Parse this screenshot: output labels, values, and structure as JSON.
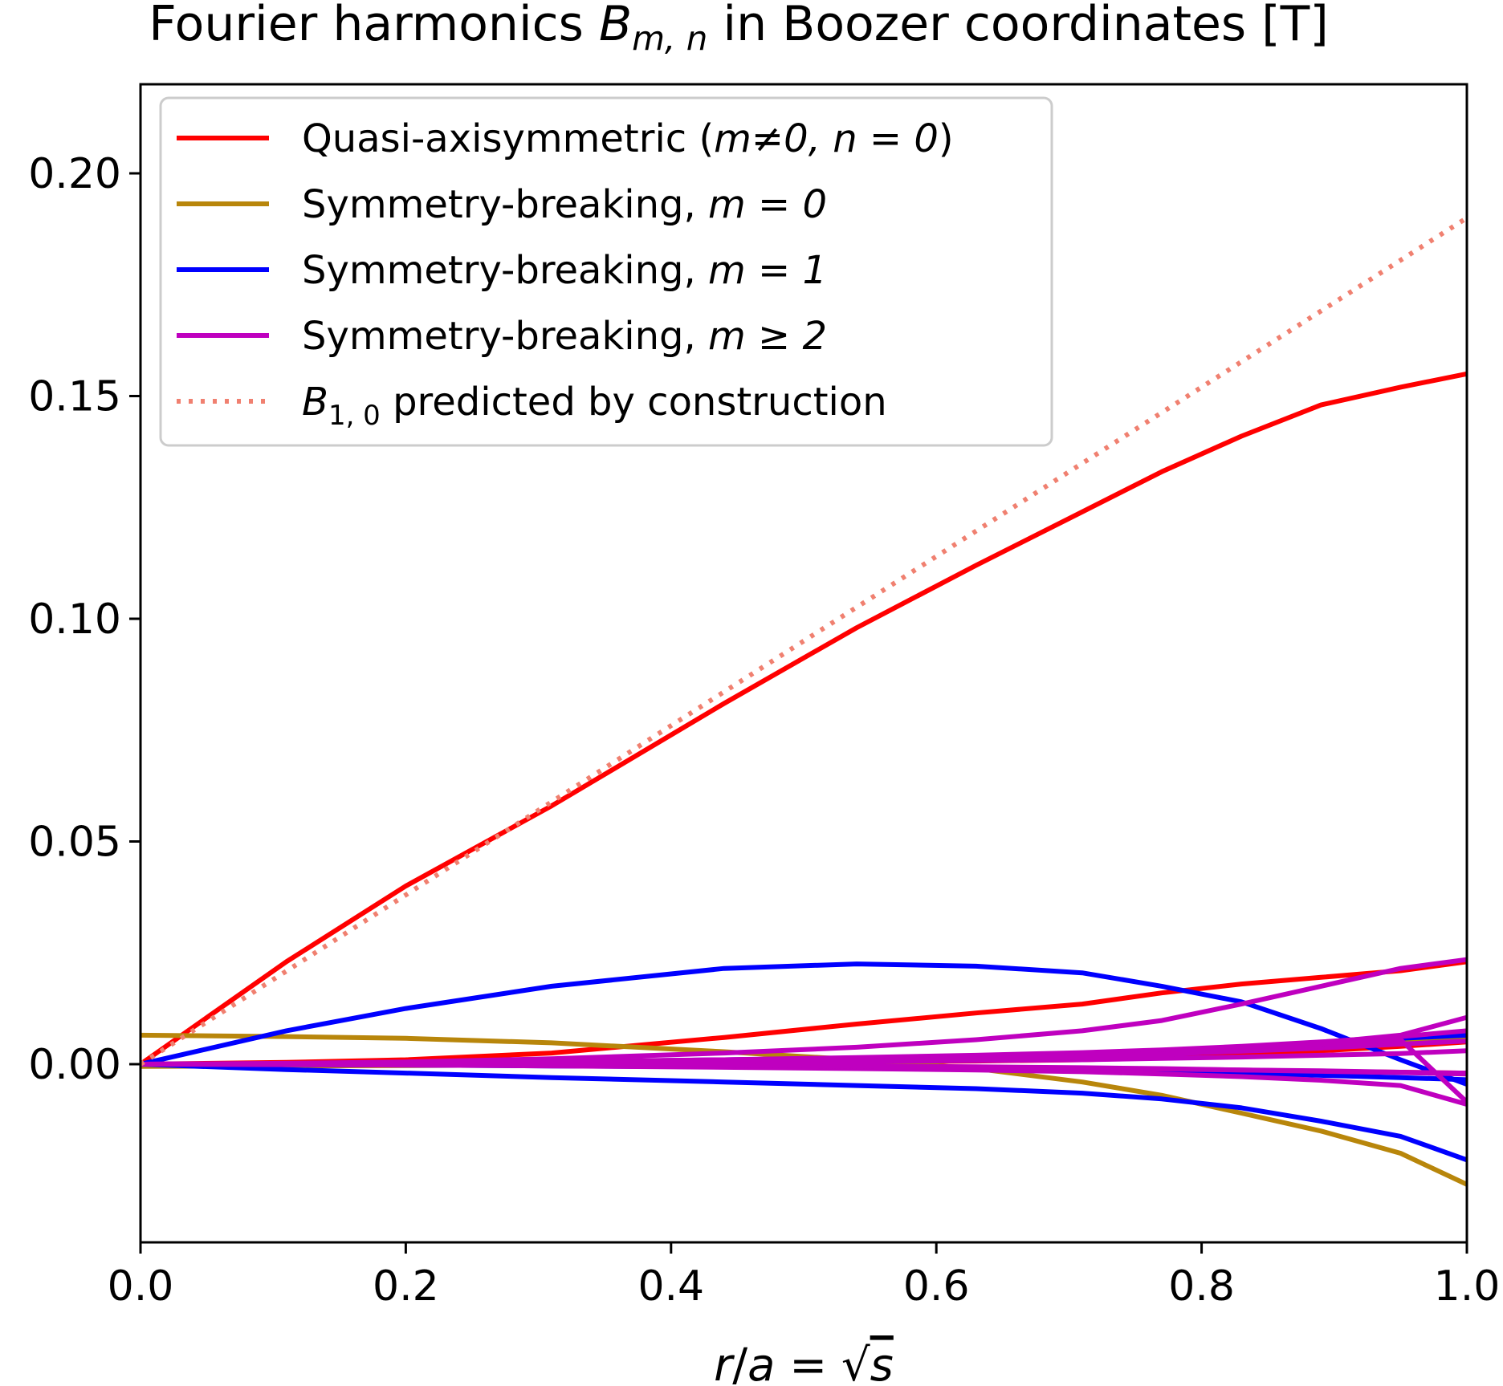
{
  "chart_data": {
    "type": "line",
    "title": {
      "before": "Fourier harmonics ",
      "symbol": "B",
      "subscript": "m, n",
      "after": " in Boozer coordinates [T]"
    },
    "xlabel": {
      "r": "r",
      "slash": "/",
      "a": "a",
      "eq": " = ",
      "sqrt": "√",
      "s": "s"
    },
    "ylabel": "",
    "xlim": [
      0.0,
      1.0
    ],
    "ylim": [
      -0.04,
      0.22
    ],
    "xticks": [
      "0.0",
      "0.2",
      "0.4",
      "0.6",
      "0.8",
      "1.0"
    ],
    "yticks": [
      "0.00",
      "0.05",
      "0.10",
      "0.15",
      "0.20"
    ],
    "grid": false,
    "legend_placement": "top-left",
    "legend": [
      {
        "prefix": "Quasi-axisymmetric (",
        "math": "m≠0, n = 0",
        "suffix": ")",
        "color": "#ff0000",
        "dash": "solid"
      },
      {
        "prefix": "Symmetry-breaking, ",
        "math": "m = 0",
        "suffix": "",
        "color": "#b8860b",
        "dash": "solid"
      },
      {
        "prefix": "Symmetry-breaking, ",
        "math": "m = 1",
        "suffix": "",
        "color": "#0000ff",
        "dash": "solid"
      },
      {
        "prefix": "Symmetry-breaking, ",
        "math": "m ≥ 2",
        "suffix": "",
        "color": "#bf00bf",
        "dash": "solid"
      },
      {
        "prefix": "",
        "math": "B",
        "sub": "1, 0",
        "suffix": " predicted by construction",
        "color": "#f08070",
        "dash": "dotted"
      }
    ],
    "x": [
      0.0,
      0.11,
      0.2,
      0.31,
      0.44,
      0.54,
      0.63,
      0.71,
      0.77,
      0.83,
      0.89,
      0.95,
      1.0
    ],
    "series": [
      {
        "group": "qa",
        "color": "#ff0000",
        "dash": "solid",
        "values": [
          0.0,
          0.023,
          0.04,
          0.058,
          0.081,
          0.098,
          0.112,
          0.124,
          0.133,
          0.141,
          0.148,
          0.152,
          0.155
        ]
      },
      {
        "group": "qa",
        "color": "#ff0000",
        "dash": "solid",
        "values": [
          0.0,
          0.0004,
          0.001,
          0.0025,
          0.006,
          0.009,
          0.0115,
          0.0135,
          0.016,
          0.018,
          0.0195,
          0.021,
          0.023
        ]
      },
      {
        "group": "qa",
        "color": "#ff0000",
        "dash": "solid",
        "values": [
          0.0,
          0.0,
          0.0,
          0.0,
          0.0003,
          0.0005,
          0.0007,
          0.001,
          0.0015,
          0.002,
          0.003,
          0.004,
          0.005
        ]
      },
      {
        "group": "qa",
        "color": "#ff0000",
        "dash": "solid",
        "values": [
          0.0,
          0.0,
          0.0,
          -0.0002,
          -0.0004,
          -0.0006,
          -0.0008,
          -0.001,
          -0.0012,
          -0.0014,
          -0.0016,
          -0.0018,
          -0.002
        ]
      },
      {
        "group": "m0",
        "color": "#b8860b",
        "dash": "solid",
        "values": [
          0.0065,
          0.0062,
          0.0058,
          0.0048,
          0.0028,
          0.001,
          -0.001,
          -0.004,
          -0.007,
          -0.011,
          -0.015,
          -0.02,
          -0.027
        ]
      },
      {
        "group": "m0",
        "color": "#b8860b",
        "dash": "solid",
        "values": [
          -0.0005,
          -0.0004,
          -0.0003,
          -0.0002,
          0.0,
          0.0005,
          0.001,
          0.0018,
          0.0025,
          0.0033,
          0.004,
          0.0048,
          0.0055
        ]
      },
      {
        "group": "m1",
        "color": "#0000ff",
        "dash": "solid",
        "values": [
          0.0,
          0.0075,
          0.0125,
          0.0175,
          0.0215,
          0.0225,
          0.022,
          0.0205,
          0.0175,
          0.014,
          0.008,
          0.001,
          -0.0045
        ]
      },
      {
        "group": "m1",
        "color": "#0000ff",
        "dash": "solid",
        "values": [
          0.0,
          -0.0012,
          -0.002,
          -0.003,
          -0.004,
          -0.0048,
          -0.0055,
          -0.0065,
          -0.0078,
          -0.0098,
          -0.0128,
          -0.0162,
          -0.0215
        ]
      },
      {
        "group": "m1",
        "color": "#0000ff",
        "dash": "solid",
        "values": [
          0.0,
          0.0001,
          0.0002,
          0.0005,
          0.001,
          0.0013,
          0.0017,
          0.0021,
          0.0026,
          0.0032,
          0.0042,
          0.0058,
          0.0065
        ]
      },
      {
        "group": "m1",
        "color": "#0000ff",
        "dash": "solid",
        "values": [
          0.0,
          -0.0001,
          -0.0002,
          -0.0004,
          -0.0006,
          -0.0008,
          -0.001,
          -0.0013,
          -0.0016,
          -0.002,
          -0.0025,
          -0.003,
          -0.0035
        ]
      },
      {
        "group": "m2",
        "color": "#bf00bf",
        "dash": "solid",
        "values": [
          0.0,
          0.0002,
          0.0005,
          0.0012,
          0.0025,
          0.0038,
          0.0055,
          0.0075,
          0.0098,
          0.0135,
          0.0175,
          0.0215,
          0.0235
        ]
      },
      {
        "group": "m2",
        "color": "#bf00bf",
        "dash": "solid",
        "values": [
          0.0,
          0.0001,
          0.0002,
          0.0005,
          0.001,
          0.0014,
          0.0019,
          0.0024,
          0.003,
          0.0038,
          0.0048,
          0.0065,
          0.0105
        ]
      },
      {
        "group": "m2",
        "color": "#bf00bf",
        "dash": "solid",
        "values": [
          0.0,
          -0.0001,
          -0.0002,
          -0.0004,
          -0.0007,
          -0.001,
          -0.0013,
          -0.0017,
          -0.0022,
          -0.0028,
          -0.0036,
          -0.0048,
          -0.009
        ]
      },
      {
        "group": "m2",
        "color": "#bf00bf",
        "dash": "solid",
        "values": [
          0.0,
          0.0001,
          0.0003,
          0.0006,
          0.001,
          0.0015,
          0.002,
          0.0026,
          0.0032,
          0.004,
          0.005,
          0.0062,
          0.0075
        ]
      },
      {
        "group": "m2",
        "color": "#bf00bf",
        "dash": "solid",
        "values": [
          0.0,
          0.0,
          0.0001,
          0.0002,
          0.0004,
          0.0006,
          0.0008,
          0.001,
          0.0013,
          0.0016,
          0.002,
          0.0024,
          0.003
        ]
      },
      {
        "group": "m2",
        "color": "#bf00bf",
        "dash": "solid",
        "values": [
          0.0,
          0.0,
          -0.0001,
          -0.0002,
          -0.0003,
          -0.0005,
          -0.0007,
          -0.0009,
          -0.0011,
          -0.0013,
          -0.0016,
          -0.0019,
          -0.0022
        ]
      },
      {
        "group": "m2",
        "color": "#bf00bf",
        "dash": "solid",
        "values": [
          0.0,
          0.0,
          -0.0001,
          -0.0002,
          -0.0003,
          -0.0004,
          -0.0006,
          -0.0008,
          -0.001,
          -0.0013,
          -0.0015,
          -0.0018,
          -0.002
        ]
      },
      {
        "group": "m2",
        "color": "#bf00bf",
        "dash": "solid",
        "values": [
          0.0,
          0.0001,
          0.0002,
          0.0004,
          0.0007,
          0.001,
          0.0014,
          0.0018,
          0.0023,
          0.0029,
          0.0036,
          0.0045,
          0.0052
        ]
      },
      {
        "group": "m2",
        "color": "#bf00bf",
        "dash": "solid",
        "values": [
          0.0,
          0.0,
          0.0001,
          0.0002,
          0.0005,
          0.0008,
          0.0012,
          0.0016,
          0.0022,
          0.003,
          0.0045,
          0.0055,
          -0.0085
        ]
      },
      {
        "group": "predicted",
        "color": "#f08070",
        "dash": "dotted",
        "x": [
          0.0,
          1.0
        ],
        "values": [
          0.0,
          0.19
        ]
      }
    ]
  }
}
